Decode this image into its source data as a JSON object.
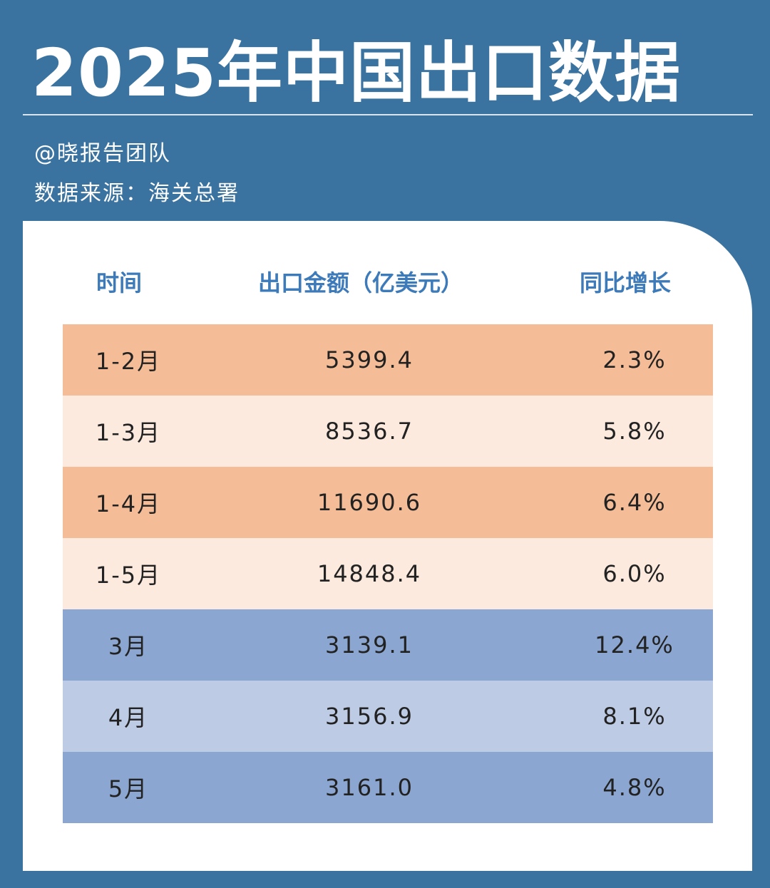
{
  "title": "2025年中国出口数据",
  "author": "@晓报告团队",
  "source": "数据来源：海关总署",
  "table": {
    "headers": [
      "时间",
      "出口金额（亿美元）",
      "同比增长"
    ],
    "rows": [
      {
        "period": "1-2月",
        "amount": "5399.4",
        "growth": "2.3%",
        "color": "#f5bd97"
      },
      {
        "period": "1-3月",
        "amount": "8536.7",
        "growth": "5.8%",
        "color": "#fdeade"
      },
      {
        "period": "1-4月",
        "amount": "11690.6",
        "growth": "6.4%",
        "color": "#f5bd97"
      },
      {
        "period": "1-5月",
        "amount": "14848.4",
        "growth": "6.0%",
        "color": "#fdeade"
      },
      {
        "period": "3月",
        "amount": "3139.1",
        "growth": "12.4%",
        "color": "#8ba7d1"
      },
      {
        "period": "4月",
        "amount": "3156.9",
        "growth": "8.1%",
        "color": "#bdcbe5"
      },
      {
        "period": "5月",
        "amount": "3161.0",
        "growth": "4.8%",
        "color": "#8ba7d1"
      }
    ]
  }
}
